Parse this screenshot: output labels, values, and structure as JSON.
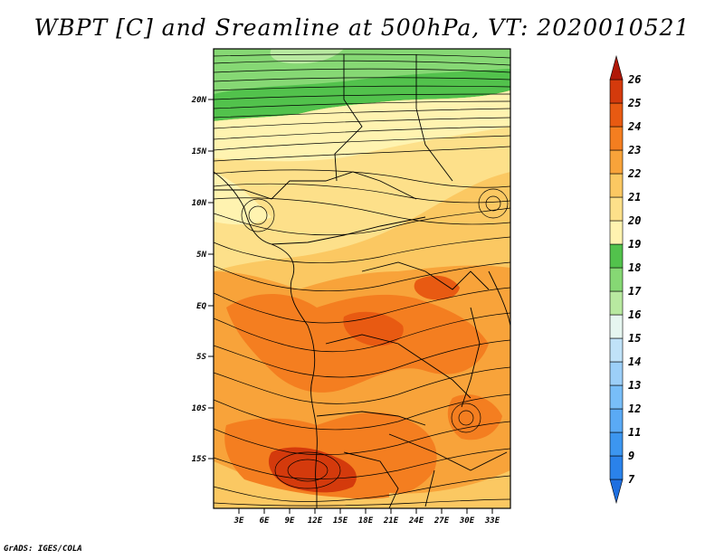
{
  "title": "WBPT [C] and Sreamline at 500hPa, VT: 2020010521",
  "credit": "GrADS: IGES/COLA",
  "map": {
    "lat_ticks": [
      "20N",
      "15N",
      "10N",
      "5N",
      "EQ",
      "5S",
      "10S",
      "15S"
    ],
    "lon_ticks": [
      "3E",
      "6E",
      "9E",
      "12E",
      "15E",
      "18E",
      "21E",
      "24E",
      "27E",
      "30E",
      "33E"
    ]
  },
  "colorbar": {
    "levels": [
      "7",
      "9",
      "11",
      "12",
      "13",
      "14",
      "15",
      "16",
      "17",
      "18",
      "19",
      "20",
      "21",
      "22",
      "23",
      "24",
      "25",
      "26"
    ],
    "colors": [
      "#1e6fe0",
      "#2a82ea",
      "#3c96f0",
      "#5aaaf5",
      "#78bef8",
      "#9ccff8",
      "#c0e2f8",
      "#e6f6f0",
      "#b8e9a0",
      "#86d874",
      "#52c24c",
      "#fff3b0",
      "#fde08a",
      "#fbc862",
      "#f8a33a",
      "#f47e20",
      "#e85a12",
      "#d43a0c",
      "#b01808"
    ]
  },
  "colors": {
    "deep_red": "#d43a0c",
    "orange": "#f47e20",
    "light_orange": "#fbc862",
    "yellow": "#fde08a",
    "green": "#52c24c",
    "light_green": "#86d874"
  }
}
